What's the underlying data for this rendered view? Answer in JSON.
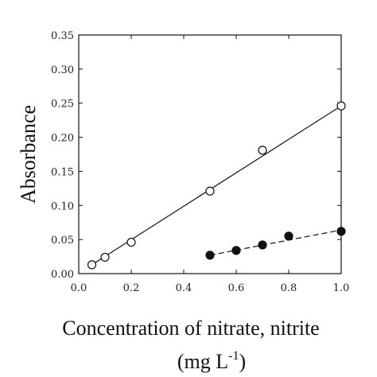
{
  "chart_data": {
    "type": "scatter",
    "xlabel": "Concentration of nitrate, nitrite",
    "xlabel_unit_prefix": "(mg L",
    "xlabel_unit_sup": "-1",
    "xlabel_unit_suffix": ")",
    "ylabel": "Absorbance",
    "xlim": [
      0.0,
      1.0
    ],
    "ylim": [
      0.0,
      0.35
    ],
    "grid": false,
    "x_ticks": [
      "0.0",
      "0.2",
      "0.4",
      "0.6",
      "0.8",
      "1.0"
    ],
    "x_tick_values": [
      0.0,
      0.2,
      0.4,
      0.6,
      0.8,
      1.0
    ],
    "y_ticks": [
      "0.00",
      "0.05",
      "0.10",
      "0.15",
      "0.20",
      "0.25",
      "0.30",
      "0.35"
    ],
    "y_tick_values": [
      0.0,
      0.05,
      0.1,
      0.15,
      0.2,
      0.25,
      0.3,
      0.35
    ],
    "series": [
      {
        "marker": "open-circle",
        "line": "solid",
        "fit": [
          [
            0.05,
            0.013
          ],
          [
            1.0,
            0.246
          ]
        ],
        "points": [
          {
            "x": 0.05,
            "y": 0.013
          },
          {
            "x": 0.1,
            "y": 0.024
          },
          {
            "x": 0.2,
            "y": 0.046
          },
          {
            "x": 0.5,
            "y": 0.121
          },
          {
            "x": 0.7,
            "y": 0.181
          },
          {
            "x": 1.0,
            "y": 0.246
          }
        ]
      },
      {
        "marker": "filled-circle",
        "line": "dashed",
        "fit": [
          [
            0.5,
            0.027
          ],
          [
            1.0,
            0.064
          ]
        ],
        "points": [
          {
            "x": 0.5,
            "y": 0.027
          },
          {
            "x": 0.6,
            "y": 0.034
          },
          {
            "x": 0.7,
            "y": 0.042
          },
          {
            "x": 0.8,
            "y": 0.055
          },
          {
            "x": 1.0,
            "y": 0.062
          }
        ]
      }
    ]
  }
}
